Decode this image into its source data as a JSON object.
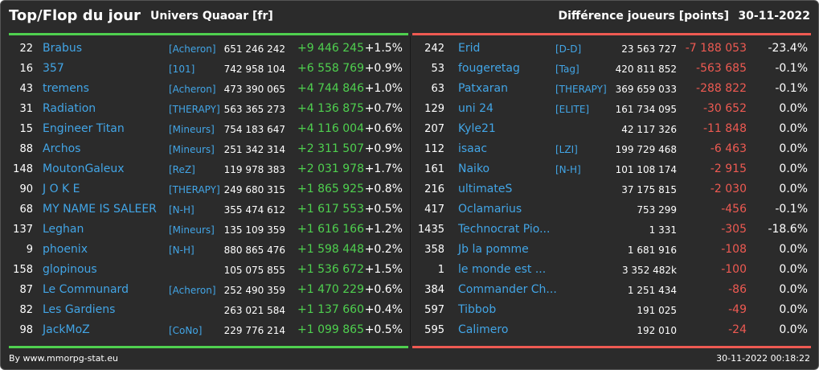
{
  "header": {
    "title": "Top/Flop du jour",
    "subtitle": "Univers Quaoar [fr]",
    "metric": "Différence joueurs [points]",
    "date": "30-11-2022"
  },
  "top": [
    {
      "rank": "22",
      "name": "Brabus",
      "tag": "[Acheron]",
      "points": "651 246 242",
      "diff": "+9 446 245",
      "pct": "+1.5%"
    },
    {
      "rank": "16",
      "name": "357",
      "tag": "[101]",
      "points": "742 958 104",
      "diff": "+6 558 769",
      "pct": "+0.9%"
    },
    {
      "rank": "43",
      "name": "tremens",
      "tag": "[Acheron]",
      "points": "473 390 065",
      "diff": "+4 744 846",
      "pct": "+1.0%"
    },
    {
      "rank": "31",
      "name": "Radiation",
      "tag": "[THERAPY]",
      "points": "563 365 273",
      "diff": "+4 136 875",
      "pct": "+0.7%"
    },
    {
      "rank": "15",
      "name": "Engineer Titan",
      "tag": "[Mineurs]",
      "points": "754 183 647",
      "diff": "+4 116 004",
      "pct": "+0.6%"
    },
    {
      "rank": "88",
      "name": "Archos",
      "tag": "[Mineurs]",
      "points": "251 342 314",
      "diff": "+2 311 507",
      "pct": "+0.9%"
    },
    {
      "rank": "148",
      "name": "MoutonGaleux",
      "tag": "[ReZ]",
      "points": "119 978 383",
      "diff": "+2 031 978",
      "pct": "+1.7%"
    },
    {
      "rank": "90",
      "name": "J O K E",
      "tag": "[THERAPY]",
      "points": "249 680 315",
      "diff": "+1 865 925",
      "pct": "+0.8%"
    },
    {
      "rank": "68",
      "name": "MY NAME IS SALEER",
      "tag": "[N-H]",
      "points": "355 474 612",
      "diff": "+1 617 553",
      "pct": "+0.5%"
    },
    {
      "rank": "137",
      "name": "Leghan",
      "tag": "[Mineurs]",
      "points": "135 109 359",
      "diff": "+1 616 166",
      "pct": "+1.2%"
    },
    {
      "rank": "9",
      "name": "phoenix",
      "tag": "[N-H]",
      "points": "880 865 476",
      "diff": "+1 598 448",
      "pct": "+0.2%"
    },
    {
      "rank": "158",
      "name": "glopinous",
      "tag": "",
      "points": "105 075 855",
      "diff": "+1 536 672",
      "pct": "+1.5%"
    },
    {
      "rank": "87",
      "name": "Le Communard",
      "tag": "[Acheron]",
      "points": "252 490 359",
      "diff": "+1 470 229",
      "pct": "+0.6%"
    },
    {
      "rank": "82",
      "name": "Les Gardiens",
      "tag": "",
      "points": "263 021 584",
      "diff": "+1 137 660",
      "pct": "+0.4%"
    },
    {
      "rank": "98",
      "name": "JackMoZ",
      "tag": "[CoNo]",
      "points": "229 776 214",
      "diff": "+1 099 865",
      "pct": "+0.5%"
    }
  ],
  "flop": [
    {
      "rank": "242",
      "name": "Erid",
      "tag": "[D-D]",
      "points": "23 563 727",
      "diff": "-7 188 053",
      "pct": "-23.4%"
    },
    {
      "rank": "53",
      "name": "fougeretag",
      "tag": "[Tag]",
      "points": "420 811 852",
      "diff": "-563 685",
      "pct": "-0.1%"
    },
    {
      "rank": "63",
      "name": "Patxaran",
      "tag": "[THERAPY]",
      "points": "369 659 033",
      "diff": "-288 822",
      "pct": "-0.1%"
    },
    {
      "rank": "129",
      "name": "uni 24",
      "tag": "[ELITE]",
      "points": "161 734 095",
      "diff": "-30 652",
      "pct": "0.0%"
    },
    {
      "rank": "207",
      "name": "Kyle21",
      "tag": "",
      "points": "42 117 326",
      "diff": "-11 848",
      "pct": "0.0%"
    },
    {
      "rank": "112",
      "name": "isaac",
      "tag": "[LZI]",
      "points": "199 729 468",
      "diff": "-6 463",
      "pct": "0.0%"
    },
    {
      "rank": "161",
      "name": "Naiko",
      "tag": "[N-H]",
      "points": "101 108 174",
      "diff": "-2 915",
      "pct": "0.0%"
    },
    {
      "rank": "216",
      "name": "ultimateS",
      "tag": "",
      "points": "37 175 815",
      "diff": "-2 030",
      "pct": "0.0%"
    },
    {
      "rank": "417",
      "name": "Oclamarius",
      "tag": "",
      "points": "753 299",
      "diff": "-456",
      "pct": "-0.1%"
    },
    {
      "rank": "1435",
      "name": "Technocrat Pio...",
      "tag": "",
      "points": "1 331",
      "diff": "-305",
      "pct": "-18.6%"
    },
    {
      "rank": "358",
      "name": "Jb la pomme",
      "tag": "",
      "points": "1 681 916",
      "diff": "-108",
      "pct": "0.0%"
    },
    {
      "rank": "1",
      "name": "le monde est ...",
      "tag": "",
      "points": "3 352 482k",
      "diff": "-100",
      "pct": "0.0%"
    },
    {
      "rank": "384",
      "name": "Commander Ch...",
      "tag": "",
      "points": "1 251 434",
      "diff": "-86",
      "pct": "0.0%"
    },
    {
      "rank": "597",
      "name": "Tibbob",
      "tag": "",
      "points": "191 025",
      "diff": "-49",
      "pct": "0.0%"
    },
    {
      "rank": "595",
      "name": "Calimero",
      "tag": "",
      "points": "192 010",
      "diff": "-24",
      "pct": "0.0%"
    }
  ],
  "footer": {
    "source": "By www.mmorpg-stat.eu",
    "timestamp": "30-11-2022 00:18:22"
  },
  "colors": {
    "positive": "#4fd04f",
    "negative": "#ee5a52",
    "link": "#42a5e6",
    "background": "#2b2b2b"
  }
}
